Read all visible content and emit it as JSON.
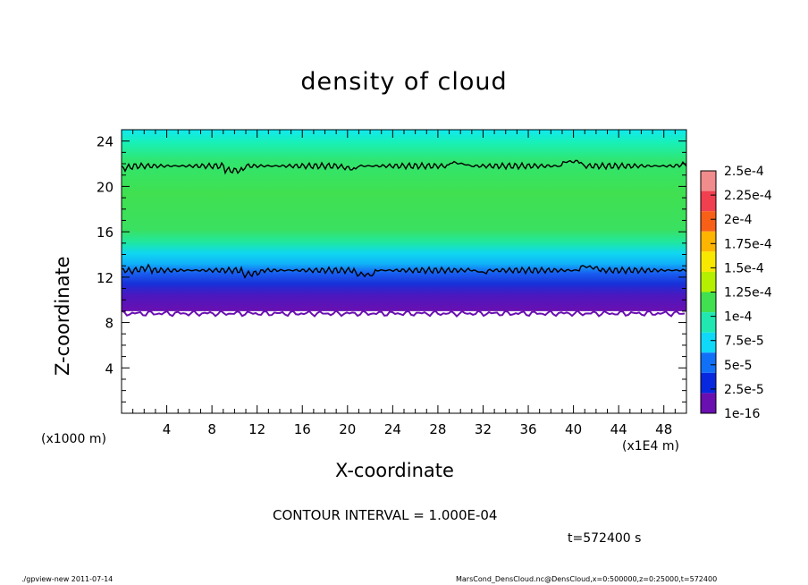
{
  "chart_data": {
    "type": "heatmap",
    "title": "density of cloud",
    "xlabel": "X-coordinate",
    "ylabel": "Z-coordinate",
    "x_unit_left": "(x1000 m)",
    "x_unit_right": "(x1E4 m)",
    "xlim": [
      0,
      50
    ],
    "ylim": [
      0,
      25
    ],
    "x_ticks": [
      4,
      8,
      12,
      16,
      20,
      24,
      28,
      32,
      36,
      40,
      44,
      48
    ],
    "y_ticks": [
      4,
      8,
      12,
      16,
      20,
      24
    ],
    "cloud_layer": {
      "base_z": 9,
      "top_z": 25,
      "contour_z_levels": [
        12.6,
        21.8
      ]
    },
    "colorbar": {
      "labels": [
        "2.5e-4",
        "2.25e-4",
        "2e-4",
        "1.75e-4",
        "1.5e-4",
        "1.25e-4",
        "1e-4",
        "7.5e-5",
        "5e-5",
        "2.5e-5",
        "1e-16"
      ],
      "colors": [
        "#f08c8c",
        "#f04050",
        "#f86018",
        "#ffb400",
        "#f8e800",
        "#b4f000",
        "#40e050",
        "#20e8b0",
        "#10d8f8",
        "#1070f8",
        "#0828e0",
        "#6a0fb0"
      ]
    },
    "contour_interval": "CONTOUR INTERVAL = 1.000E-04",
    "time_label": "t=572400 s"
  },
  "footer": {
    "left": "./gpview-new   2011-07-14",
    "right": "MarsCond_DensCloud.nc@DensCloud,x=0:500000,z=0:25000,t=572400"
  }
}
